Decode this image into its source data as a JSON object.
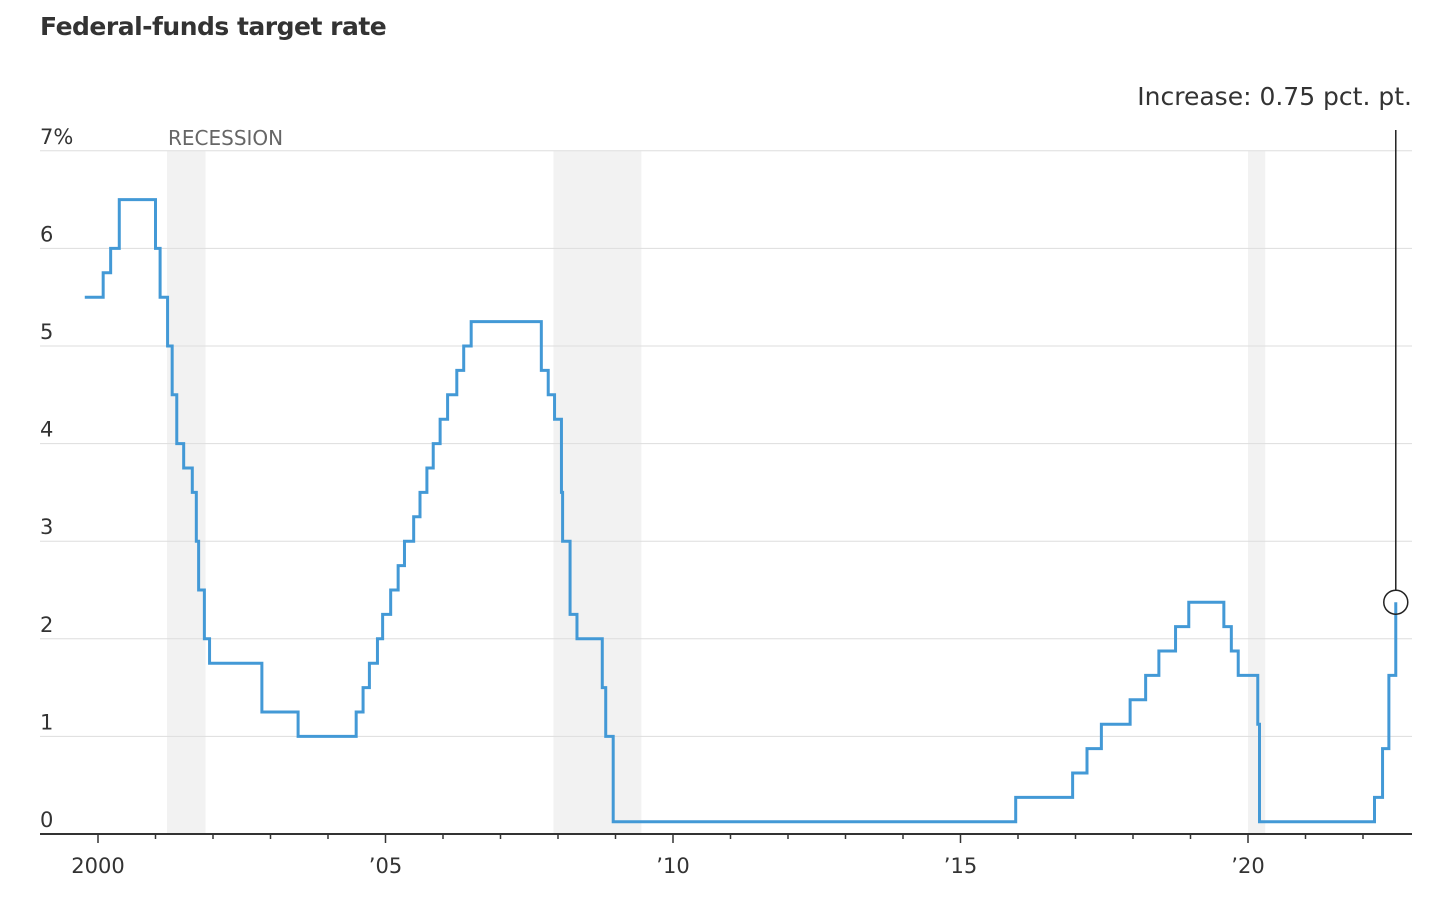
{
  "chart_data": {
    "type": "line",
    "step": true,
    "title": "Federal-funds target rate",
    "ylim": [
      0,
      7
    ],
    "xlim": [
      1999.6,
      2022.9
    ],
    "y_ticks": [
      0,
      1,
      2,
      3,
      4,
      5,
      6,
      7
    ],
    "y_tick_labels": [
      "0",
      "1",
      "2",
      "3",
      "4",
      "5",
      "6",
      "7%"
    ],
    "x_ticks": [
      2000,
      2005,
      2010,
      2015,
      2020
    ],
    "x_tick_labels": [
      "2000",
      "’05",
      "’10",
      "’15",
      "’20"
    ],
    "grid": true,
    "line_color": "#4399d6",
    "recession_color": "#f2f2f2",
    "recession_label": "RECESSION",
    "recessions": [
      [
        2001.2,
        2001.87
      ],
      [
        2007.92,
        2009.45
      ],
      [
        2020.0,
        2020.3
      ]
    ],
    "annotation": {
      "text": "Increase: 0.75 pct. pt.",
      "x": 2022.57,
      "y": 2.375
    },
    "series": [
      {
        "x": [
          1999.77,
          2000.09,
          2000.22,
          2000.37,
          2001.0,
          2001.08,
          2001.21,
          2001.29,
          2001.37,
          2001.49,
          2001.64,
          2001.71,
          2001.75,
          2001.85,
          2001.94,
          2002.85,
          2003.48,
          2004.49,
          2004.61,
          2004.72,
          2004.86,
          2004.95,
          2005.09,
          2005.22,
          2005.33,
          2005.49,
          2005.6,
          2005.72,
          2005.83,
          2005.95,
          2006.08,
          2006.24,
          2006.36,
          2006.49,
          2007.71,
          2007.83,
          2007.94,
          2008.06,
          2008.08,
          2008.21,
          2008.33,
          2008.77,
          2008.83,
          2008.96,
          2015.96,
          2016.95,
          2017.2,
          2017.45,
          2017.95,
          2018.22,
          2018.45,
          2018.74,
          2018.97,
          2019.58,
          2019.71,
          2019.83,
          2020.17,
          2020.2,
          2022.2,
          2022.34,
          2022.45,
          2022.57
        ],
        "y": [
          5.5,
          5.75,
          6.0,
          6.5,
          6.0,
          5.5,
          5.0,
          4.5,
          4.0,
          3.75,
          3.5,
          3.0,
          2.5,
          2.0,
          1.75,
          1.25,
          1.0,
          1.25,
          1.5,
          1.75,
          2.0,
          2.25,
          2.5,
          2.75,
          3.0,
          3.25,
          3.5,
          3.75,
          4.0,
          4.25,
          4.5,
          4.75,
          5.0,
          5.25,
          4.75,
          4.5,
          4.25,
          3.5,
          3.0,
          2.25,
          2.0,
          1.5,
          1.0,
          0.125,
          0.375,
          0.625,
          0.875,
          1.125,
          1.375,
          1.625,
          1.875,
          2.125,
          2.375,
          2.125,
          1.875,
          1.625,
          1.125,
          0.125,
          0.375,
          0.875,
          1.625,
          2.375
        ]
      }
    ]
  }
}
